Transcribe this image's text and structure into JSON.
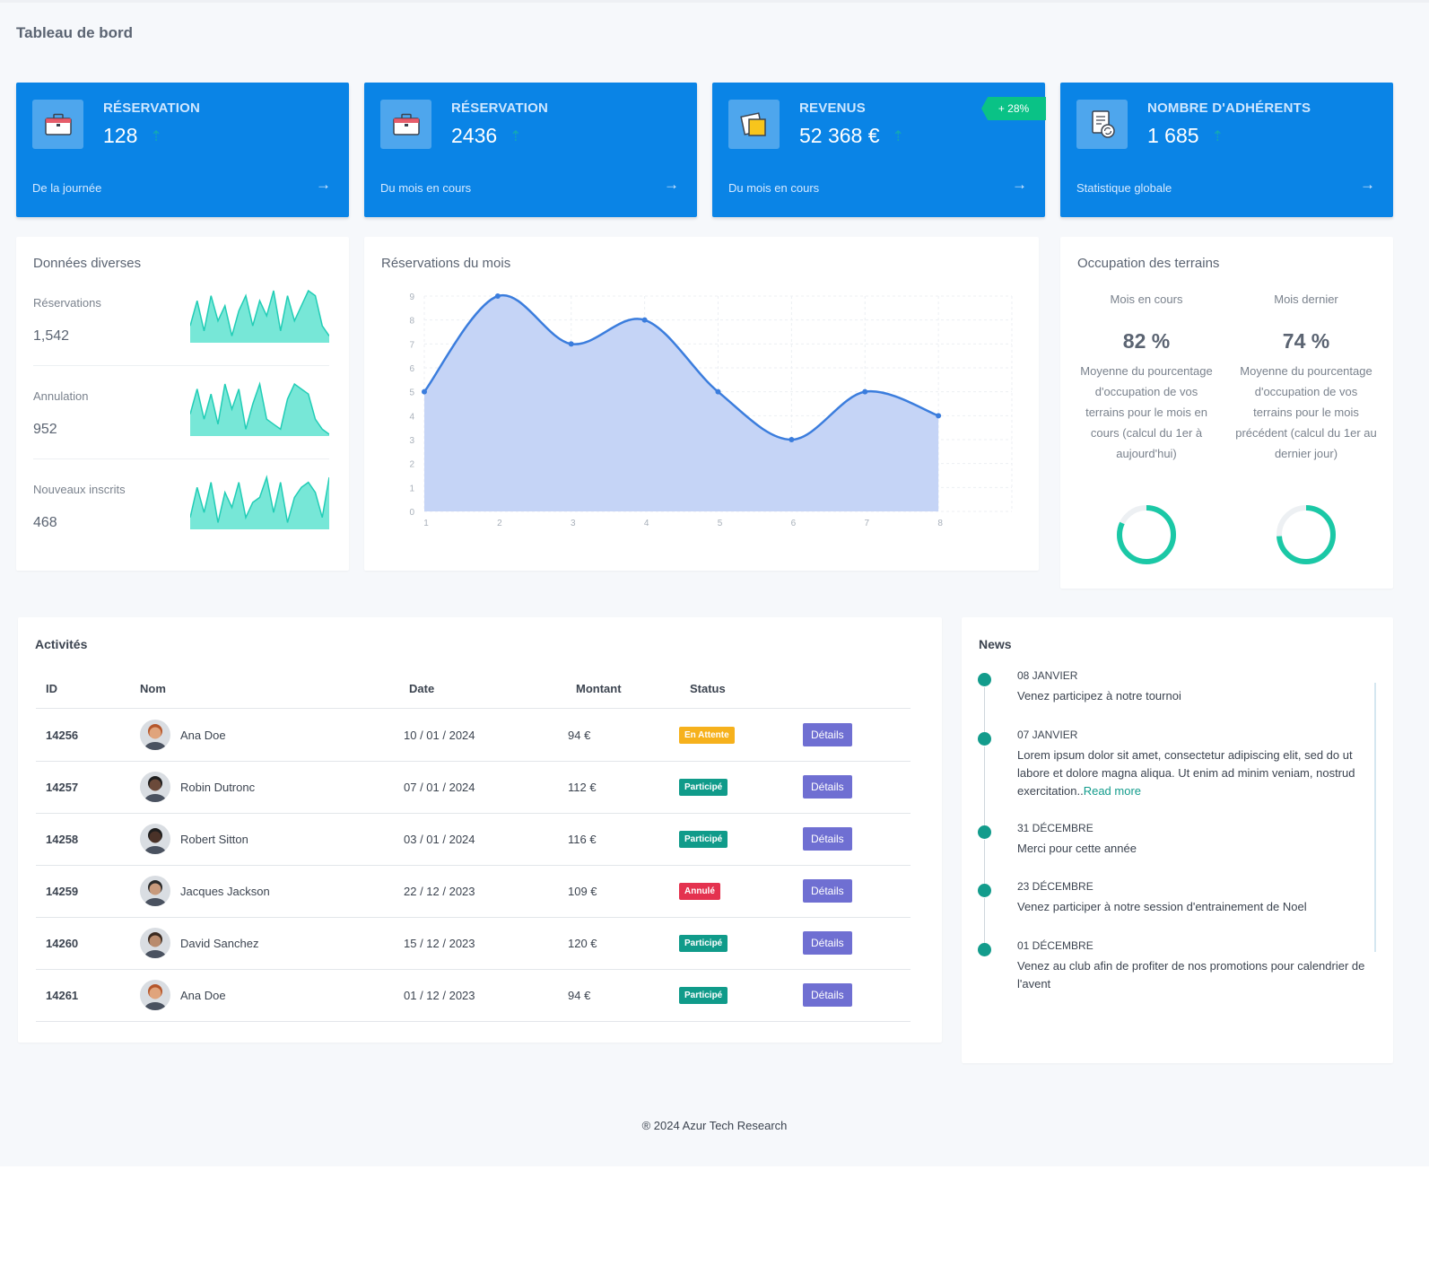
{
  "page": {
    "title": "Tableau de bord"
  },
  "stats": [
    {
      "label": "RÉSERVATION",
      "value": "128",
      "sub": "De la journée",
      "icon": "briefcase-icon"
    },
    {
      "label": "RÉSERVATION",
      "value": "2436",
      "sub": "Du mois en cours",
      "icon": "briefcase-icon"
    },
    {
      "label": "REVENUS",
      "value": "52 368 €",
      "sub": "Du mois en cours",
      "icon": "sticky-notes-icon",
      "ribbon": "+ 28%"
    },
    {
      "label": "NOMBRE D'ADHÉRENTS",
      "value": "1 685",
      "sub": "Statistique globale",
      "icon": "document-refresh-icon"
    }
  ],
  "misc": {
    "title": "Données diverses",
    "items": [
      {
        "label": "Réservations",
        "value": "1,542",
        "spark": [
          3,
          8,
          2,
          9,
          4,
          7,
          1,
          6,
          9,
          3,
          8,
          5,
          10,
          2,
          9,
          4,
          7,
          10,
          9,
          3,
          1
        ]
      },
      {
        "label": "Annulation",
        "value": "952",
        "spark": [
          4,
          9,
          3,
          8,
          2,
          10,
          5,
          9,
          1,
          6,
          10,
          3,
          2,
          1,
          7,
          10,
          9,
          8,
          3,
          1,
          0
        ]
      },
      {
        "label": "Nouveaux inscrits",
        "value": "468",
        "spark": [
          2,
          8,
          3,
          9,
          1,
          7,
          4,
          9,
          2,
          5,
          6,
          10,
          3,
          9,
          1,
          6,
          8,
          9,
          7,
          2,
          10
        ]
      }
    ]
  },
  "month_chart": {
    "title": "Réservations du mois"
  },
  "chart_data": {
    "type": "area",
    "title": "Réservations du mois",
    "x": [
      1,
      2,
      3,
      4,
      5,
      6,
      7,
      8
    ],
    "series": [
      {
        "values": [
          5,
          9,
          7,
          8,
          5,
          3,
          5,
          4
        ]
      }
    ],
    "xlabel": "",
    "ylabel": "",
    "ylim": [
      0,
      9
    ],
    "yticks": [
      0,
      1,
      2,
      3,
      4,
      5,
      6,
      7,
      8,
      9
    ],
    "grid": true,
    "color": "#3b7ddd",
    "fill": "#c5d4f6"
  },
  "occupation": {
    "title": "Occupation des terrains",
    "cols": [
      {
        "head": "Mois en cours",
        "pct": "82 %",
        "value": 82,
        "desc": "Moyenne du pourcentage d'occupation de vos terrains pour le mois en cours (calcul du 1er à aujourd'hui)"
      },
      {
        "head": "Mois dernier",
        "pct": "74 %",
        "value": 74,
        "desc": "Moyenne du pourcentage d'occupation de vos terrains pour le mois précédent (calcul du 1er au dernier jour)"
      }
    ]
  },
  "activities": {
    "title": "Activités",
    "headers": {
      "id": "ID",
      "name": "Nom",
      "date": "Date",
      "amount": "Montant",
      "status": "Status"
    },
    "details_label": "Détails",
    "rows": [
      {
        "id": "14256",
        "name": "Ana Doe",
        "date": "10 / 01 / 2024",
        "amount": "94 €",
        "status": "En Attente",
        "status_color": "#f6b11c"
      },
      {
        "id": "14257",
        "name": "Robin Dutronc",
        "date": "07 / 01 / 2024",
        "amount": "112 €",
        "status": "Participé",
        "status_color": "#109b8a"
      },
      {
        "id": "14258",
        "name": "Robert Sitton",
        "date": "03 / 01 / 2024",
        "amount": "116 €",
        "status": "Participé",
        "status_color": "#109b8a"
      },
      {
        "id": "14259",
        "name": "Jacques Jackson",
        "date": "22 / 12 / 2023",
        "amount": "109 €",
        "status": "Annulé",
        "status_color": "#e4324f"
      },
      {
        "id": "14260",
        "name": "David Sanchez",
        "date": "15 / 12 / 2023",
        "amount": "120 €",
        "status": "Participé",
        "status_color": "#109b8a"
      },
      {
        "id": "14261",
        "name": "Ana Doe",
        "date": "01 / 12 / 2023",
        "amount": "94 €",
        "status": "Participé",
        "status_color": "#109b8a"
      }
    ]
  },
  "news": {
    "title": "News",
    "read_more": "Read more",
    "items": [
      {
        "date": "08 JANVIER",
        "text": "Venez participez à notre tournoi"
      },
      {
        "date": "07 JANVIER",
        "text": "Lorem ipsum dolor sit amet, consectetur adipiscing elit, sed do ut labore et dolore magna aliqua. Ut enim ad minim veniam, nostrud exercitation..",
        "has_more": true
      },
      {
        "date": "31 DÉCEMBRE",
        "text": "Merci pour cette année"
      },
      {
        "date": "23 DÉCEMBRE",
        "text": "Venez participer à notre session d'entrainement de Noel"
      },
      {
        "date": "01 DÉCEMBRE",
        "text": "Venez au club afin de profiter de nos promotions pour calendrier de l'avent"
      }
    ]
  },
  "footer": {
    "text": "® 2024 Azur Tech Research"
  },
  "colors": {
    "brand": "#0a84e6",
    "accent": "#139c8c",
    "spark": "#5fe3d0",
    "donut": "#1bc8a6"
  }
}
